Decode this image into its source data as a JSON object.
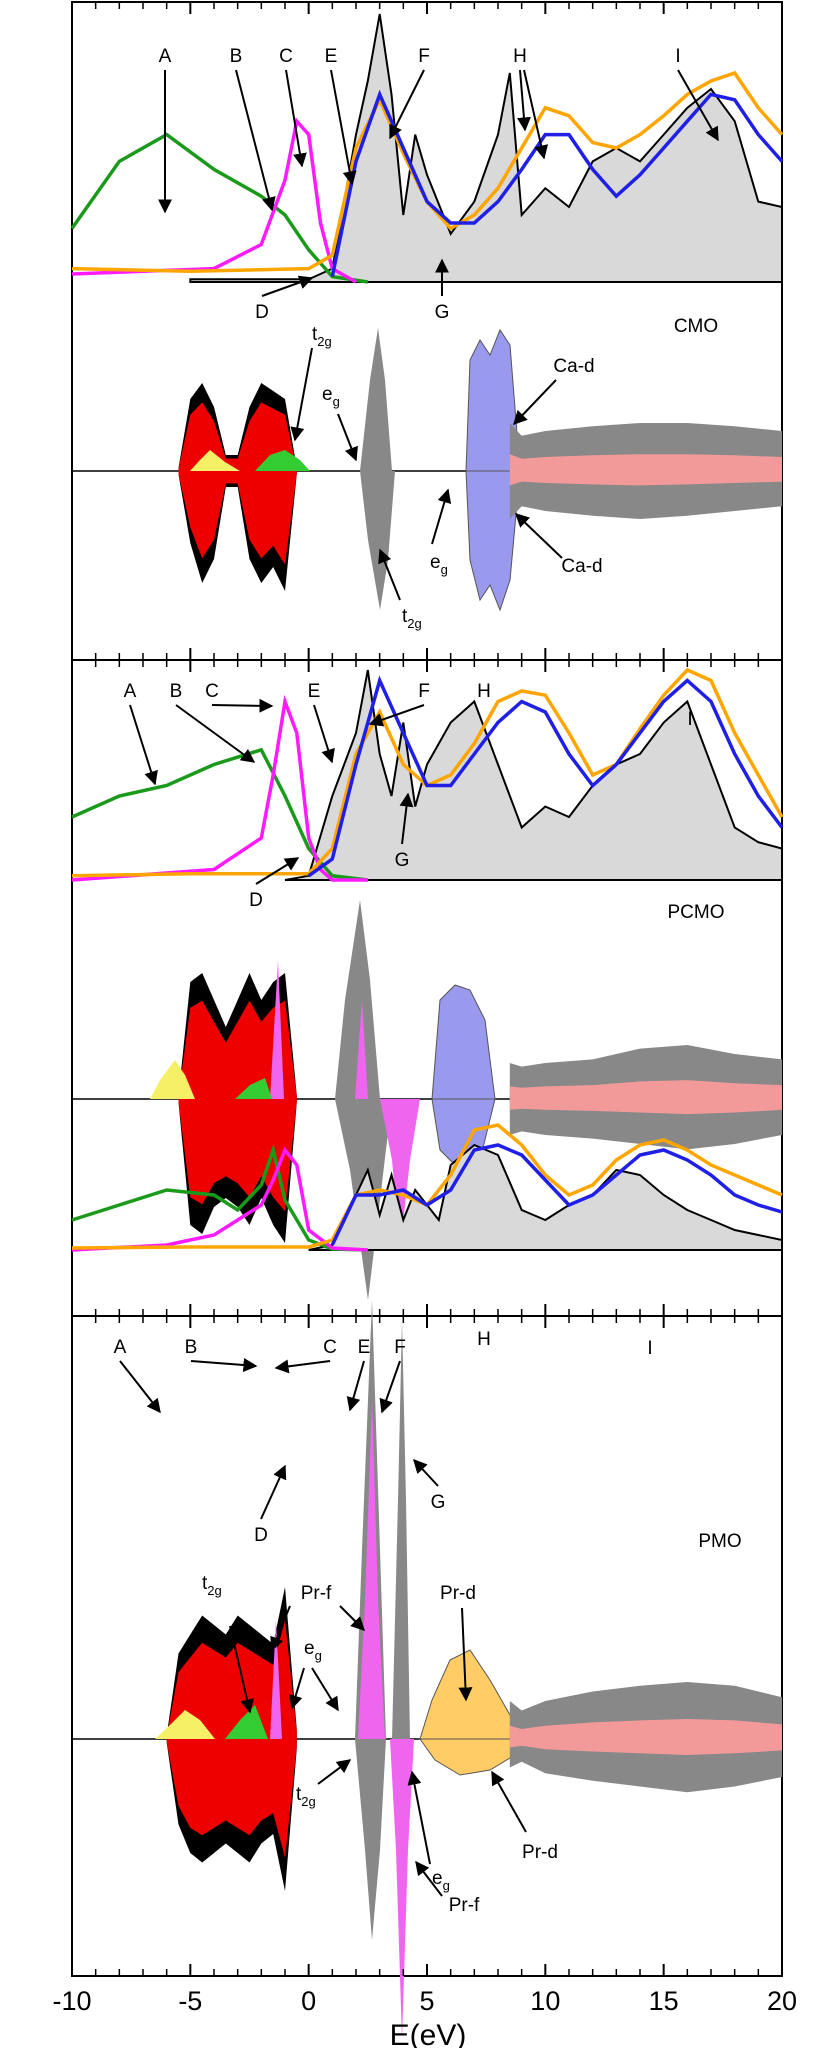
{
  "chart_data": {
    "type": "area",
    "x_axis": {
      "label": "E(eV)",
      "range": [
        -10,
        20
      ],
      "ticks": [
        -10,
        -5,
        0,
        5,
        10,
        15,
        20
      ],
      "tick_labels": [
        "-10",
        "-5",
        "0",
        "5",
        "10",
        "15",
        "20"
      ]
    },
    "colors": {
      "O_K_emission": "#1a9a1a",
      "O_K_absorption_theory": "#ff1aff",
      "O_absorption_blue": "#1f1fe6",
      "O_absorption_orange": "#ffa500",
      "calculated_fill": "#d9d9d9",
      "total_dos": "#000000",
      "mn_d": "#ee0000",
      "o_p": "#33cc33",
      "ca_d": "#9999ee",
      "pr_f": "#ee66ee",
      "pr_d": "#ffcc66",
      "grey_dos": "#888888",
      "pink_dos": "#f29a9a",
      "yellow_dos": "#f5f066"
    },
    "panels": [
      {
        "material": "CMO",
        "spectra": {
          "emission_peak_labels": [
            "A",
            "B",
            "C",
            "D"
          ],
          "absorption_peak_labels": [
            "E",
            "F",
            "G",
            "H",
            "I"
          ],
          "O_K_emission": {
            "x": [
              -10,
              -8,
              -6,
              -4,
              -2,
              -1,
              0,
              1,
              2.5
            ],
            "y": [
              0.2,
              0.45,
              0.55,
              0.42,
              0.32,
              0.25,
              0.12,
              0.02,
              0.0
            ]
          },
          "magenta": {
            "x": [
              -10,
              -4,
              -2,
              -1,
              -0.5,
              0,
              0.5,
              1,
              2
            ],
            "y": [
              0.03,
              0.05,
              0.14,
              0.38,
              0.6,
              0.55,
              0.22,
              0.05,
              0.0
            ]
          },
          "blue": {
            "x": [
              1,
              2,
              3,
              4,
              5,
              6,
              7,
              8,
              9,
              10,
              11,
              12,
              13,
              14,
              15,
              16,
              17,
              18,
              19,
              20
            ],
            "y": [
              0.02,
              0.45,
              0.7,
              0.5,
              0.3,
              0.22,
              0.22,
              0.3,
              0.42,
              0.55,
              0.55,
              0.42,
              0.32,
              0.4,
              0.5,
              0.6,
              0.7,
              0.68,
              0.55,
              0.45
            ]
          },
          "orange": {
            "x": [
              -10,
              -5,
              0,
              1,
              2,
              3,
              4,
              5,
              6,
              7,
              8,
              9,
              10,
              11,
              12,
              13,
              14,
              15,
              16,
              17,
              18,
              19,
              20
            ],
            "y": [
              0.05,
              0.04,
              0.05,
              0.1,
              0.5,
              0.68,
              0.48,
              0.3,
              0.2,
              0.25,
              0.35,
              0.5,
              0.65,
              0.62,
              0.52,
              0.5,
              0.55,
              0.62,
              0.7,
              0.75,
              0.78,
              0.65,
              0.55
            ]
          },
          "calculated": {
            "x": [
              -5,
              0,
              1,
              2,
              2.5,
              3,
              3.5,
              4,
              4.5,
              5,
              6,
              7,
              8,
              8.5,
              9,
              10,
              11,
              12,
              13,
              14,
              15,
              16,
              17,
              18,
              19,
              20
            ],
            "y": [
              0.01,
              0.01,
              0.05,
              0.55,
              0.75,
              1.0,
              0.7,
              0.25,
              0.55,
              0.4,
              0.18,
              0.3,
              0.55,
              0.78,
              0.25,
              0.35,
              0.28,
              0.45,
              0.5,
              0.45,
              0.55,
              0.65,
              0.72,
              0.6,
              0.3,
              0.28
            ]
          }
        },
        "dos_labels": [
          "CMO",
          "Ca-d",
          "Ca-d",
          "t2g",
          "eg",
          "eg",
          "t2g"
        ],
        "dos": {
          "x": [
            -5.5,
            -5,
            -4.5,
            -4,
            -3.5,
            -3,
            -2.5,
            -2,
            -1.5,
            -1,
            -0.5,
            0.5,
            1,
            1.5,
            2,
            2.5,
            3,
            3.5,
            4,
            4.5,
            5,
            5.5,
            6,
            6.5,
            7,
            7.5,
            8,
            8.5,
            9,
            10,
            12,
            14,
            16,
            18,
            20
          ],
          "up_total": [
            0.02,
            0.45,
            0.55,
            0.4,
            0.1,
            0.1,
            0.4,
            0.55,
            0.5,
            0.45,
            0.02,
            0.0,
            0.02,
            0.15,
            0.3,
            0.95,
            0.5,
            0.08,
            0.25,
            0.2,
            0.02,
            0.0,
            0.05,
            0.6,
            0.75,
            0.7,
            0.8,
            0.3,
            0.22,
            0.25,
            0.28,
            0.3,
            0.3,
            0.28,
            0.25
          ],
          "down_total": [
            0.02,
            0.45,
            0.7,
            0.55,
            0.1,
            0.1,
            0.55,
            0.7,
            0.6,
            0.75,
            0.02,
            0.0,
            0.02,
            0.15,
            0.4,
            0.85,
            0.4,
            0.05,
            0.2,
            0.25,
            0.02,
            0.0,
            0.05,
            0.55,
            0.7,
            0.6,
            0.75,
            0.3,
            0.22,
            0.25,
            0.28,
            0.3,
            0.28,
            0.25,
            0.22
          ]
        }
      },
      {
        "material": "PCMO",
        "spectra": {
          "emission_peak_labels": [
            "A",
            "B",
            "C",
            "D"
          ],
          "absorption_peak_labels": [
            "E",
            "F",
            "G",
            "H",
            "I"
          ],
          "O_K_emission": {
            "x": [
              -10,
              -8,
              -6,
              -4,
              -2,
              -1,
              0,
              1,
              2.5
            ],
            "y": [
              0.3,
              0.4,
              0.45,
              0.55,
              0.62,
              0.4,
              0.15,
              0.02,
              0.0
            ]
          },
          "magenta": {
            "x": [
              -10,
              -4,
              -2,
              -1.5,
              -1,
              -0.5,
              0,
              0.5,
              1,
              2.5
            ],
            "y": [
              0.0,
              0.05,
              0.2,
              0.5,
              0.85,
              0.7,
              0.2,
              0.05,
              0.0,
              0.0
            ]
          },
          "blue": {
            "x": [
              0,
              1,
              2,
              3,
              4,
              5,
              6,
              7,
              8,
              9,
              10,
              11,
              12,
              13,
              14,
              15,
              16,
              17,
              18,
              19,
              20
            ],
            "y": [
              0.02,
              0.1,
              0.55,
              0.95,
              0.7,
              0.45,
              0.45,
              0.6,
              0.75,
              0.85,
              0.8,
              0.6,
              0.45,
              0.55,
              0.7,
              0.85,
              0.95,
              0.85,
              0.6,
              0.4,
              0.25
            ]
          },
          "orange": {
            "x": [
              -10,
              -5,
              0,
              1,
              2,
              3,
              4,
              5,
              6,
              7,
              8,
              9,
              10,
              11,
              12,
              13,
              14,
              15,
              16,
              17,
              18,
              19,
              20
            ],
            "y": [
              0.02,
              0.03,
              0.03,
              0.15,
              0.6,
              0.8,
              0.55,
              0.45,
              0.5,
              0.65,
              0.85,
              0.9,
              0.88,
              0.7,
              0.5,
              0.55,
              0.72,
              0.88,
              1.0,
              0.95,
              0.7,
              0.5,
              0.3
            ]
          },
          "calculated": {
            "x": [
              -1,
              0,
              1,
              2,
              2.5,
              3,
              3.5,
              4,
              4.5,
              5,
              6,
              7,
              8,
              9,
              10,
              11,
              12,
              13,
              14,
              15,
              16,
              17,
              18,
              19,
              20
            ],
            "y": [
              0.0,
              0.02,
              0.4,
              0.7,
              1.0,
              0.6,
              0.4,
              0.75,
              0.35,
              0.55,
              0.75,
              0.85,
              0.55,
              0.25,
              0.35,
              0.3,
              0.45,
              0.55,
              0.6,
              0.75,
              0.85,
              0.55,
              0.25,
              0.18,
              0.15
            ]
          }
        },
        "dos_labels": [
          "PCMO"
        ],
        "dos": {
          "x": [
            -5.5,
            -5,
            -4.5,
            -4,
            -3.5,
            -3,
            -2.5,
            -2,
            -1.5,
            -1,
            -0.5,
            0.5,
            1,
            1.5,
            2,
            2.5,
            3,
            3.5,
            4,
            4.5,
            5,
            5.5,
            6,
            6.5,
            7,
            7.5,
            8,
            8.5,
            9,
            10,
            12,
            14,
            16,
            18,
            20
          ],
          "up_total": [
            0.02,
            0.65,
            0.7,
            0.55,
            0.4,
            0.55,
            0.7,
            0.55,
            0.65,
            0.7,
            0.02,
            0.15,
            0.02,
            0.1,
            0.4,
            0.85,
            0.6,
            0.3,
            0.55,
            0.45,
            0.2,
            0.05,
            0.35,
            0.55,
            0.6,
            0.5,
            0.45,
            0.2,
            0.18,
            0.2,
            0.22,
            0.28,
            0.3,
            0.25,
            0.22
          ],
          "down_total": [
            0.02,
            0.7,
            0.75,
            0.6,
            0.55,
            0.6,
            0.7,
            0.55,
            0.7,
            0.8,
            0.02,
            0.08,
            0.02,
            0.1,
            0.4,
            0.95,
            0.6,
            0.35,
            0.6,
            0.4,
            0.15,
            0.05,
            0.25,
            0.4,
            0.45,
            0.4,
            0.35,
            0.2,
            0.18,
            0.2,
            0.22,
            0.25,
            0.28,
            0.25,
            0.2
          ]
        }
      },
      {
        "material": "PMO",
        "spectra": {
          "emission_peak_labels": [
            "A",
            "B",
            "C",
            "D"
          ],
          "absorption_peak_labels": [
            "E",
            "F",
            "G",
            "H",
            "I"
          ],
          "O_K_emission": {
            "x": [
              -10,
              -8,
              -6,
              -4,
              -3,
              -2,
              -1.5,
              -1,
              0,
              1,
              2.5
            ],
            "y": [
              0.3,
              0.45,
              0.6,
              0.55,
              0.4,
              0.65,
              1.0,
              0.5,
              0.1,
              0.01,
              0.0
            ]
          },
          "magenta": {
            "x": [
              -10,
              -6,
              -4,
              -3,
              -2,
              -1.5,
              -1,
              -0.5,
              0,
              1,
              2.5
            ],
            "y": [
              0.0,
              0.05,
              0.15,
              0.3,
              0.45,
              0.7,
              1.0,
              0.85,
              0.2,
              0.02,
              0.0
            ]
          },
          "blue": {
            "x": [
              1,
              2,
              3,
              4,
              5,
              6,
              7,
              8,
              9,
              10,
              11,
              12,
              13,
              14,
              15,
              16,
              17,
              18,
              19,
              20
            ],
            "y": [
              0.05,
              0.55,
              0.55,
              0.6,
              0.45,
              0.6,
              1.0,
              1.05,
              0.95,
              0.7,
              0.45,
              0.55,
              0.75,
              0.95,
              1.0,
              0.9,
              0.75,
              0.55,
              0.45,
              0.38
            ]
          },
          "orange": {
            "x": [
              -10,
              -5,
              0,
              1,
              2,
              3,
              4,
              5,
              6,
              7,
              8,
              9,
              10,
              11,
              12,
              13,
              14,
              15,
              16,
              17,
              18,
              19,
              20
            ],
            "y": [
              0.02,
              0.03,
              0.03,
              0.1,
              0.55,
              0.6,
              0.55,
              0.45,
              0.75,
              1.2,
              1.25,
              1.05,
              0.75,
              0.55,
              0.65,
              0.9,
              1.05,
              1.1,
              1.0,
              0.85,
              0.75,
              0.65,
              0.55
            ]
          },
          "calculated": {
            "x": [
              0,
              1,
              2,
              2.5,
              3,
              3.5,
              4,
              4.5,
              5,
              5.5,
              6,
              7,
              8,
              9,
              10,
              11,
              12,
              13,
              14,
              15,
              16,
              17,
              18,
              19,
              20
            ],
            "y": [
              0.0,
              0.05,
              0.55,
              0.8,
              0.35,
              0.75,
              0.3,
              0.6,
              0.45,
              0.3,
              0.85,
              1.05,
              0.95,
              0.4,
              0.3,
              0.45,
              0.55,
              0.8,
              0.75,
              0.55,
              0.4,
              0.3,
              0.2,
              0.15,
              0.1
            ]
          }
        },
        "dos_labels": [
          "PMO",
          "Pr-f",
          "Pr-d",
          "Pr-d",
          "Pr-f",
          "t2g",
          "t2g",
          "eg",
          "eg"
        ],
        "dos": {
          "x": [
            -6,
            -5.5,
            -5,
            -4.5,
            -4,
            -3.5,
            -3,
            -2.5,
            -2,
            -1.5,
            -1,
            -0.5,
            0,
            0.5,
            1,
            1.5,
            2,
            2.5,
            3,
            3.5,
            4,
            4.5,
            5,
            5.5,
            6,
            6.5,
            7,
            7.5,
            8,
            8.5,
            9,
            10,
            12,
            14,
            16,
            18,
            20
          ],
          "up_total": [
            0.02,
            0.45,
            0.55,
            0.65,
            0.6,
            0.55,
            0.65,
            0.6,
            0.55,
            0.5,
            0.8,
            0.05,
            0.15,
            0.02,
            0.05,
            0.15,
            0.3,
            1.0,
            0.25,
            0.4,
            1.0,
            0.25,
            0.15,
            0.2,
            0.3,
            0.4,
            0.45,
            0.4,
            0.35,
            0.2,
            0.15,
            0.2,
            0.25,
            0.28,
            0.3,
            0.28,
            0.22
          ],
          "down_total": [
            0.02,
            0.45,
            0.6,
            0.65,
            0.6,
            0.55,
            0.6,
            0.65,
            0.55,
            0.5,
            0.8,
            0.05,
            0.15,
            0.02,
            0.05,
            0.1,
            0.2,
            1.0,
            0.2,
            0.3,
            1.0,
            0.2,
            0.15,
            0.2,
            0.25,
            0.3,
            0.35,
            0.3,
            0.25,
            0.15,
            0.12,
            0.18,
            0.22,
            0.25,
            0.28,
            0.25,
            0.2
          ]
        }
      }
    ]
  }
}
